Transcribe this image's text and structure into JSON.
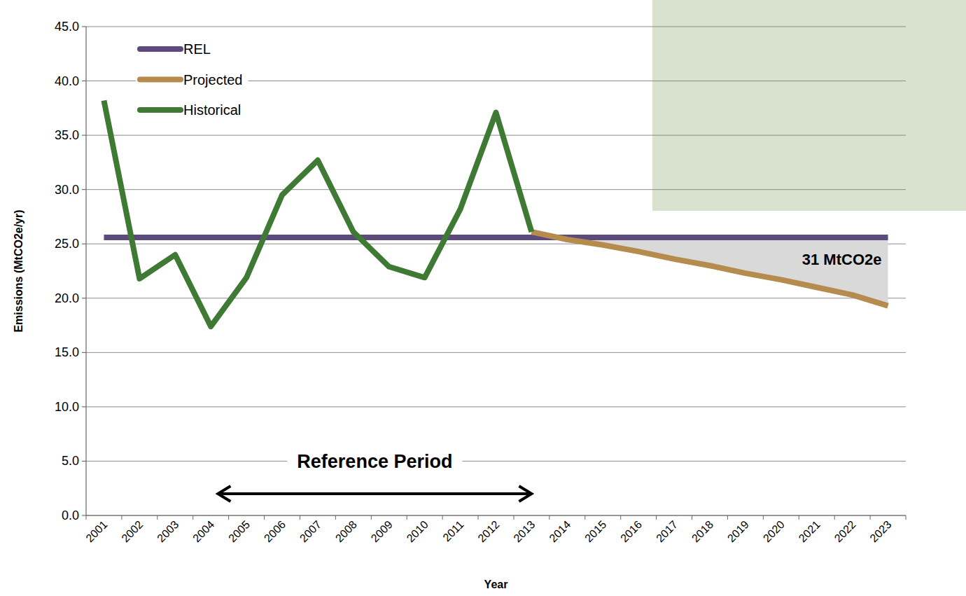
{
  "chart_data": {
    "type": "line",
    "x_label": "Year",
    "y_label": "Emissions (MtCO2e/yr)",
    "categories": [
      "2001",
      "2002",
      "2003",
      "2004",
      "2005",
      "2006",
      "2007",
      "2008",
      "2009",
      "2010",
      "2011",
      "2012",
      "2013",
      "2014",
      "2015",
      "2016",
      "2017",
      "2018",
      "2019",
      "2020",
      "2021",
      "2022",
      "2023"
    ],
    "series": [
      {
        "name": "REL",
        "color": "#5c4a7d",
        "values": [
          25.6,
          25.6,
          25.6,
          25.6,
          25.6,
          25.6,
          25.6,
          25.6,
          25.6,
          25.6,
          25.6,
          25.6,
          25.6,
          25.6,
          25.6,
          25.6,
          25.6,
          25.6,
          25.6,
          25.6,
          25.6,
          25.6,
          25.6
        ]
      },
      {
        "name": "Projected",
        "color": "#b58c4e",
        "values": [
          null,
          null,
          null,
          null,
          null,
          null,
          null,
          null,
          null,
          null,
          null,
          null,
          26.1,
          25.4,
          24.9,
          24.3,
          23.6,
          23.0,
          22.3,
          21.7,
          21.0,
          20.3,
          19.3
        ]
      },
      {
        "name": "Historical",
        "color": "#3f7a35",
        "values": [
          38.2,
          21.8,
          24.0,
          17.4,
          21.9,
          29.5,
          32.7,
          26.1,
          22.9,
          21.9,
          28.2,
          37.1,
          26.1,
          null,
          null,
          null,
          null,
          null,
          null,
          null,
          null,
          null,
          null
        ]
      }
    ],
    "ylim": [
      0,
      45
    ],
    "yticks": [
      {
        "value": 0,
        "label": "0.0"
      },
      {
        "value": 5,
        "label": "5.0"
      },
      {
        "value": 10,
        "label": "10.0"
      },
      {
        "value": 15,
        "label": "15.0"
      },
      {
        "value": 20,
        "label": "20.0"
      },
      {
        "value": 25,
        "label": "25.0"
      },
      {
        "value": 30,
        "label": "30.0"
      },
      {
        "value": 35,
        "label": "35.0"
      },
      {
        "value": 40,
        "label": "40.0"
      },
      {
        "value": 45,
        "label": "45.0"
      }
    ],
    "grid": true,
    "legend": "top-left",
    "annotations": [
      {
        "text": "31 MtCO2e"
      },
      {
        "text": "Reference Period"
      }
    ]
  }
}
